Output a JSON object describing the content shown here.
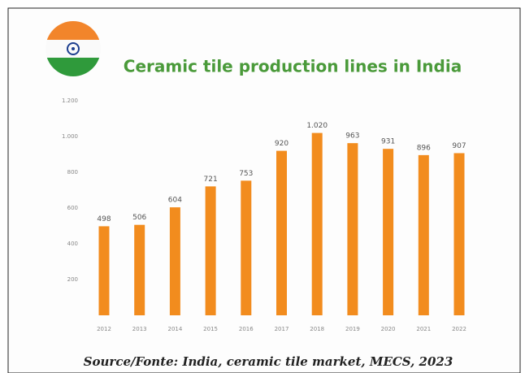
{
  "chart_data": {
    "type": "bar",
    "title": "Ceramic tile production lines in India",
    "source": "Source/Fonte: India, ceramic tile market, MECS, 2023",
    "categories": [
      "2012",
      "2013",
      "2014",
      "2015",
      "2016",
      "2017",
      "2018",
      "2019",
      "2020",
      "2021",
      "2022"
    ],
    "values": [
      498,
      506,
      604,
      721,
      753,
      920,
      1020,
      963,
      931,
      896,
      907
    ],
    "value_labels": [
      "498",
      "506",
      "604",
      "721",
      "753",
      "920",
      "1.020",
      "963",
      "931",
      "896",
      "907"
    ],
    "color": "#f28c1e",
    "ylim": [
      0,
      1200
    ],
    "yticks": [
      200,
      400,
      600,
      800,
      {
        "value": 1000,
        "label": "1.000"
      },
      {
        "value": 1200,
        "label": "1.200"
      }
    ],
    "grid": false
  }
}
